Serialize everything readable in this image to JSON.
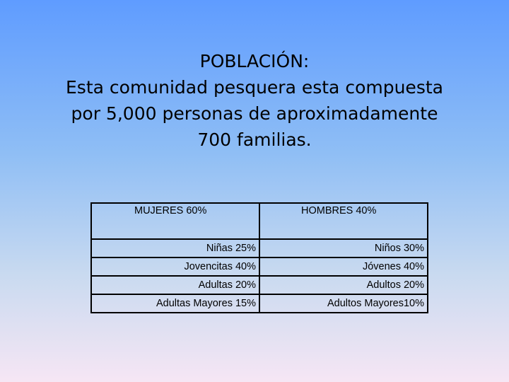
{
  "title": {
    "lines": [
      "POBLACIÓN:",
      "Esta comunidad pesquera esta compuesta",
      "por 5,000 personas de aproximadamente",
      "700 familias."
    ]
  },
  "table": {
    "headers": [
      "MUJERES 60%",
      "HOMBRES 40%"
    ],
    "rows": [
      [
        "Niñas 25%",
        "Niños 30%"
      ],
      [
        "Jovencitas 40%",
        "Jóvenes 40%"
      ],
      [
        "Adultas 20%",
        "Adultos 20%"
      ],
      [
        "Adultas Mayores 15%",
        "Adultos Mayores10%"
      ]
    ]
  }
}
